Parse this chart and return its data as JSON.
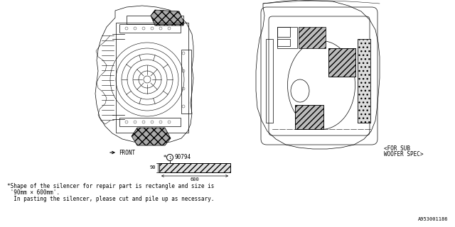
{
  "bg_color": "#ffffff",
  "line_color": "#000000",
  "note_line1": "*Shape of the silencer for repair part is rectangle and size is",
  "note_line2": " '90mm × 600mm'.",
  "note_line3": "  In pasting the silencer, please cut and pile up as necessary.",
  "part_number": "A953001186",
  "font_size_small": 5.5,
  "font_size_note": 5.5,
  "lw_main": 0.5
}
